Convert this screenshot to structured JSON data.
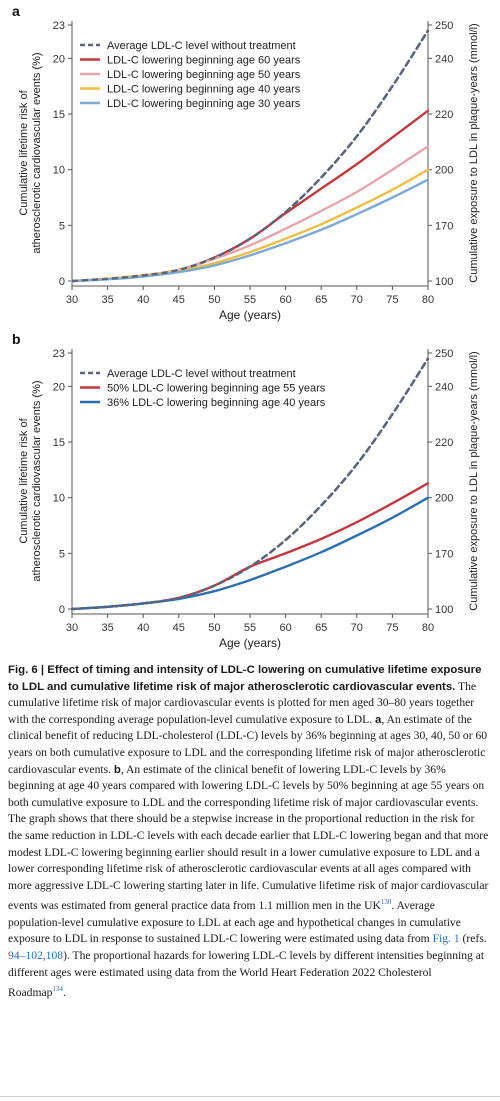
{
  "chart_data": [
    {
      "panel_label": "a",
      "type": "line",
      "xlabel": "Age (years)",
      "ylabel_left": [
        "Cumulative lifetime risk of",
        "atherosclerotic cardiovascular events (%)"
      ],
      "ylabel_right": "Cumulative exposure to LDL in plaque-years (mmol/l)",
      "xlim": [
        30,
        80
      ],
      "ylim": [
        0,
        23
      ],
      "x_ticks": [
        "30",
        "35",
        "40",
        "45",
        "50",
        "55",
        "60",
        "65",
        "70",
        "75",
        "80"
      ],
      "y_ticks_left": [
        "0",
        "5",
        "10",
        "15",
        "20",
        "23"
      ],
      "y_ticks_right": [
        "100",
        "170",
        "200",
        "220",
        "240",
        "250"
      ],
      "legend_position": "top-left",
      "x": [
        30,
        35,
        40,
        45,
        50,
        55,
        60,
        65,
        70,
        75,
        80
      ],
      "series": [
        {
          "name": "Average LDL-C level without treatment",
          "color": "#5c6478",
          "dash": true,
          "values": [
            0,
            0.2,
            0.5,
            1.0,
            2.1,
            3.8,
            6.2,
            9.3,
            13.0,
            17.5,
            22.5
          ]
        },
        {
          "name": "LDL-C lowering beginning age 60 years",
          "color": "#c0393f",
          "dash": false,
          "values": [
            0,
            0.2,
            0.5,
            1.0,
            2.1,
            3.8,
            6.1,
            8.3,
            10.5,
            12.9,
            15.3
          ]
        },
        {
          "name": "LDL-C lowering beginning age 50 years",
          "color": "#e6a5ad",
          "dash": false,
          "values": [
            0,
            0.2,
            0.5,
            1.0,
            2.0,
            3.2,
            4.7,
            6.3,
            8.0,
            10.0,
            12.1
          ]
        },
        {
          "name": "LDL-C lowering beginning age 40 years",
          "color": "#ecbf47",
          "dash": false,
          "values": [
            0,
            0.2,
            0.5,
            0.9,
            1.6,
            2.6,
            3.8,
            5.1,
            6.6,
            8.2,
            10.0
          ]
        },
        {
          "name": "LDL-C lowering beginning age 30 years",
          "color": "#7ea9d3",
          "dash": false,
          "values": [
            0,
            0.15,
            0.4,
            0.8,
            1.4,
            2.3,
            3.4,
            4.6,
            6.0,
            7.5,
            9.1
          ]
        }
      ]
    },
    {
      "panel_label": "b",
      "type": "line",
      "xlabel": "Age (years)",
      "ylabel_left": [
        "Cumulative lifetime risk of",
        "atherosclerotic cardiovascular events (%)"
      ],
      "ylabel_right": "Cumulative exposure to LDL in plaque-years (mmol/l)",
      "xlim": [
        30,
        80
      ],
      "ylim": [
        0,
        23
      ],
      "x_ticks": [
        "30",
        "35",
        "40",
        "45",
        "50",
        "55",
        "60",
        "65",
        "70",
        "75",
        "80"
      ],
      "y_ticks_left": [
        "0",
        "5",
        "10",
        "15",
        "20",
        "23"
      ],
      "y_ticks_right": [
        "100",
        "170",
        "200",
        "220",
        "240",
        "250"
      ],
      "legend_position": "top-left",
      "x": [
        30,
        35,
        40,
        45,
        50,
        55,
        60,
        65,
        70,
        75,
        80
      ],
      "series": [
        {
          "name": "Average LDL-C level without treatment",
          "color": "#5c6478",
          "dash": true,
          "values": [
            0,
            0.2,
            0.5,
            1.0,
            2.1,
            3.8,
            6.2,
            9.3,
            13.0,
            17.5,
            22.5
          ]
        },
        {
          "name": "50% LDL-C lowering beginning age 55 years",
          "color": "#c0393f",
          "dash": false,
          "values": [
            0,
            0.2,
            0.5,
            1.0,
            2.1,
            3.8,
            5.0,
            6.3,
            7.8,
            9.5,
            11.3
          ]
        },
        {
          "name": "36% LDL-C lowering beginning age 40 years",
          "color": "#2f6fae",
          "dash": false,
          "values": [
            0,
            0.2,
            0.5,
            0.9,
            1.6,
            2.6,
            3.8,
            5.1,
            6.6,
            8.2,
            10.0
          ]
        }
      ]
    }
  ],
  "caption": {
    "bold": "Fig. 6 | Effect of timing and intensity of LDL-C lowering on cumulative lifetime exposure to LDL and cumulative lifetime risk of major atherosclerotic cardiovascular events.",
    "text_1": " The cumulative lifetime risk of major cardiovascular events is plotted for men aged 30–80 years together with the corresponding average population-level cumulative exposure to LDL. ",
    "label_a": "a",
    "text_2": ", An estimate of the clinical benefit of reducing LDL-cholesterol (LDL-C) levels by 36% beginning at ages 30, 40, 50 or 60 years on both cumulative exposure to LDL and the corresponding lifetime risk of major atherosclerotic cardiovascular events. ",
    "label_b": "b",
    "text_3": ", An estimate of the clinical benefit of lowering LDL-C levels by 36% beginning at age 40 years compared with lowering LDL-C levels by 50% beginning at age 55 years on both cumulative exposure to LDL and the corresponding lifetime risk of major cardiovascular events. The graph shows that there should be a stepwise increase in the proportional reduction in the risk for the same reduction in LDL-C levels with each decade earlier that LDL-C lowering began and that more modest LDL-C lowering beginning earlier should result in a lower cumulative exposure to LDL and a lower corresponding lifetime risk of atherosclerotic cardiovascular events at all ages compared with more aggressive LDL-C lowering starting later in life. Cumulative lifetime risk of major cardiovascular events was estimated from general practice data from 1.1 million men in the UK",
    "sup_1": "130",
    "text_4": ". Average population-level cumulative exposure to LDL at each age and hypothetical changes in cumulative exposure to LDL in response to sustained LDL-C lowering were estimated using data from ",
    "fig_ref": "Fig. 1",
    "text_5": " (refs. ",
    "refs": "94–102,108",
    "text_6": "). The proportional hazards for lowering LDL-C levels by different intensities beginning at different ages were estimated using data from the World Heart Federation 2022 Cholesterol Roadmap",
    "sup_2": "134",
    "text_7": "."
  }
}
